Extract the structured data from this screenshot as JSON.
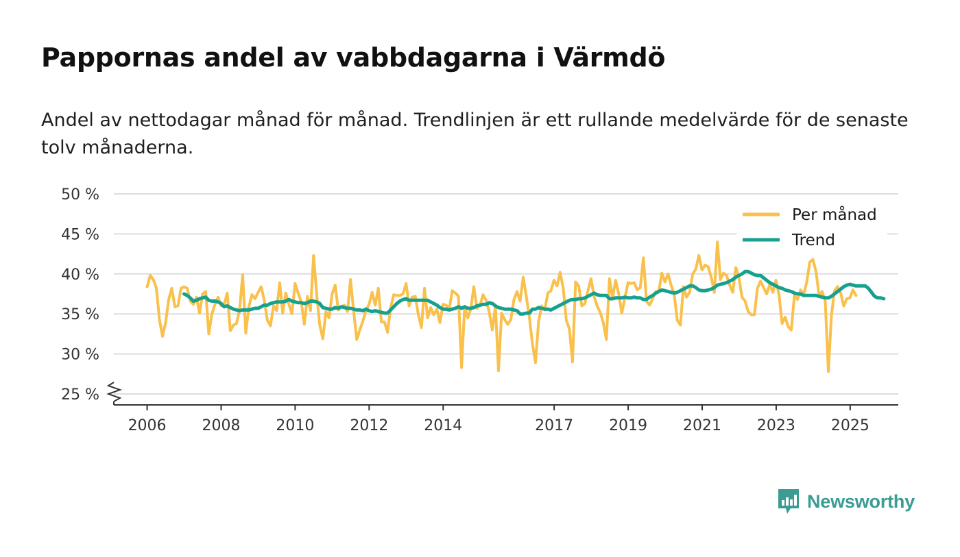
{
  "title": "Pappornas andel av vabbdagarna i Värmdö",
  "subtitle": "Andel av nettodagar månad för månad. Trendlinjen är ett rullande medelvärde för de senaste tolv månaderna.",
  "brand": {
    "name": "Newsworthy",
    "icon": "newsworthy-logo-icon",
    "color": "#3a9c93"
  },
  "colors": {
    "monthly": "#f9c04c",
    "trend": "#17a08e",
    "grid": "#dddddd",
    "axis": "#333333"
  },
  "chart_data": {
    "type": "line",
    "title": "Pappornas andel av vabbdagarna i Värmdö",
    "xlabel": "",
    "ylabel": "",
    "x_start": 2006.0,
    "x_step": 0.0833,
    "xlim": [
      2005.1,
      2026.3
    ],
    "ylim": [
      24,
      50
    ],
    "y_ticks": [
      25,
      30,
      35,
      40,
      45,
      50
    ],
    "y_tick_labels": [
      "25 %",
      "30 %",
      "35 %",
      "40 %",
      "45 %",
      "50 %"
    ],
    "x_ticks": [
      2006,
      2008,
      2010,
      2012,
      2014,
      2017,
      2019,
      2021,
      2023,
      2025
    ],
    "x_tick_labels": [
      "2006",
      "2008",
      "2010",
      "2012",
      "2014",
      "2017",
      "2019",
      "2021",
      "2023",
      "2025"
    ],
    "axis_break": true,
    "legend_position": "top-right",
    "series": [
      {
        "name": "Per månad",
        "color": "#f9c04c",
        "values": [
          38.4,
          39.8,
          39.3,
          38.2,
          34.3,
          32.2,
          33.9,
          36.8,
          38.2,
          35.9,
          36.0,
          38.2,
          38.4,
          38.2,
          36.6,
          36.2,
          37.1,
          35.1,
          37.5,
          37.8,
          32.5,
          35.0,
          36.2,
          37.1,
          36.0,
          36.2,
          37.6,
          32.9,
          33.6,
          33.8,
          35.5,
          39.9,
          32.6,
          35.9,
          37.4,
          36.9,
          37.7,
          38.4,
          36.7,
          34.2,
          33.5,
          36.0,
          35.4,
          38.9,
          35.1,
          37.6,
          36.2,
          35.0,
          38.8,
          37.6,
          36.5,
          33.7,
          37.2,
          35.4,
          42.3,
          37.5,
          33.6,
          31.9,
          35.3,
          34.5,
          37.5,
          38.6,
          35.5,
          35.9,
          36.1,
          35.3,
          39.3,
          35.4,
          31.8,
          33.0,
          34.1,
          35.4,
          36.2,
          37.7,
          36.1,
          38.2,
          34.0,
          34.0,
          32.7,
          35.8,
          37.4,
          37.3,
          37.3,
          37.5,
          38.8,
          36.0,
          37.1,
          37.2,
          34.9,
          33.3,
          38.2,
          34.5,
          35.8,
          34.9,
          35.6,
          33.9,
          36.2,
          36.1,
          35.6,
          37.9,
          37.6,
          37.2,
          28.3,
          35.9,
          34.5,
          35.6,
          38.4,
          35.7,
          36.1,
          37.4,
          36.7,
          35.2,
          33.0,
          36.0,
          27.9,
          35.1,
          34.3,
          33.7,
          34.3,
          36.8,
          37.8,
          36.6,
          39.6,
          37.2,
          34.6,
          31.3,
          28.9,
          34.0,
          36.0,
          35.5,
          37.6,
          37.9,
          39.2,
          38.5,
          40.2,
          38.2,
          34.2,
          33.1,
          29.0,
          39.0,
          38.5,
          36.0,
          36.3,
          37.9,
          39.4,
          37.2,
          36.0,
          35.2,
          33.9,
          31.8,
          39.4,
          37.0,
          39.2,
          37.5,
          35.1,
          37.0,
          38.9,
          38.8,
          38.9,
          38.0,
          38.3,
          42.0,
          36.6,
          36.1,
          36.9,
          37.8,
          37.8,
          40.1,
          39.0,
          40.0,
          38.6,
          37.5,
          34.2,
          33.6,
          38.4,
          37.1,
          37.7,
          40.0,
          40.6,
          42.3,
          40.5,
          41.1,
          40.9,
          39.6,
          37.7,
          44.0,
          39.3,
          40.1,
          39.8,
          38.6,
          37.7,
          40.8,
          39.5,
          37.1,
          36.6,
          35.3,
          34.9,
          34.9,
          38.2,
          39.1,
          38.3,
          37.5,
          38.7,
          37.7,
          39.2,
          37.4,
          33.8,
          34.6,
          33.4,
          33.0,
          37.3,
          36.8,
          38.0,
          37.4,
          39.0,
          41.5,
          41.8,
          40.3,
          37.3,
          37.8,
          36.6,
          27.8,
          34.8,
          37.9,
          38.4,
          37.6,
          36.0,
          36.9,
          37.0,
          38.0,
          37.3
        ]
      },
      {
        "name": "Trend",
        "color": "#17a08e",
        "values_start_index": 12,
        "values": [
          37.5,
          37.3,
          37.0,
          36.6,
          36.7,
          36.9,
          37.0,
          37.1,
          36.7,
          36.6,
          36.6,
          36.5,
          36.3,
          35.9,
          36.0,
          35.8,
          35.6,
          35.5,
          35.4,
          35.5,
          35.5,
          35.5,
          35.6,
          35.7,
          35.7,
          35.9,
          36.1,
          36.1,
          36.3,
          36.4,
          36.5,
          36.5,
          36.5,
          36.6,
          36.8,
          36.6,
          36.5,
          36.4,
          36.4,
          36.3,
          36.4,
          36.6,
          36.6,
          36.5,
          36.3,
          35.8,
          35.7,
          35.6,
          35.6,
          35.8,
          35.7,
          35.9,
          35.8,
          35.7,
          35.7,
          35.6,
          35.5,
          35.5,
          35.4,
          35.6,
          35.4,
          35.3,
          35.4,
          35.3,
          35.2,
          35.1,
          35.1,
          35.5,
          35.9,
          36.3,
          36.6,
          36.8,
          36.9,
          36.7,
          36.7,
          36.7,
          36.7,
          36.7,
          36.7,
          36.7,
          36.5,
          36.3,
          36.1,
          35.8,
          35.6,
          35.6,
          35.5,
          35.6,
          35.7,
          35.9,
          35.7,
          35.9,
          35.7,
          35.7,
          35.8,
          36.0,
          36.1,
          36.2,
          36.2,
          36.4,
          36.3,
          36.0,
          35.8,
          35.7,
          35.6,
          35.6,
          35.6,
          35.5,
          35.4,
          35.0,
          35.0,
          35.1,
          35.1,
          35.6,
          35.6,
          35.8,
          35.7,
          35.6,
          35.6,
          35.5,
          35.7,
          35.9,
          36.1,
          36.3,
          36.5,
          36.7,
          36.8,
          36.8,
          36.9,
          36.9,
          37.0,
          37.2,
          37.4,
          37.6,
          37.4,
          37.3,
          37.3,
          37.3,
          36.9,
          36.9,
          37.0,
          37.0,
          37.0,
          37.1,
          37.0,
          37.0,
          37.1,
          37.0,
          37.0,
          36.8,
          36.8,
          37.1,
          37.3,
          37.6,
          37.8,
          38.0,
          37.9,
          37.8,
          37.7,
          37.6,
          37.7,
          37.9,
          38.1,
          38.3,
          38.5,
          38.5,
          38.3,
          38.0,
          37.9,
          37.9,
          38.0,
          38.1,
          38.3,
          38.6,
          38.7,
          38.8,
          38.9,
          39.1,
          39.3,
          39.6,
          39.8,
          40.0,
          40.3,
          40.3,
          40.1,
          39.9,
          39.8,
          39.8,
          39.5,
          39.2,
          38.9,
          38.7,
          38.5,
          38.3,
          38.2,
          38.0,
          37.9,
          37.8,
          37.6,
          37.5,
          37.5,
          37.3,
          37.3,
          37.3,
          37.3,
          37.3,
          37.2,
          37.1,
          37.0,
          37.0,
          37.2,
          37.5,
          37.8,
          38.1,
          38.4,
          38.6,
          38.7,
          38.6,
          38.5,
          38.5,
          38.5,
          38.5,
          38.2,
          37.7,
          37.2,
          37.0,
          37.0,
          36.9
        ]
      }
    ]
  }
}
